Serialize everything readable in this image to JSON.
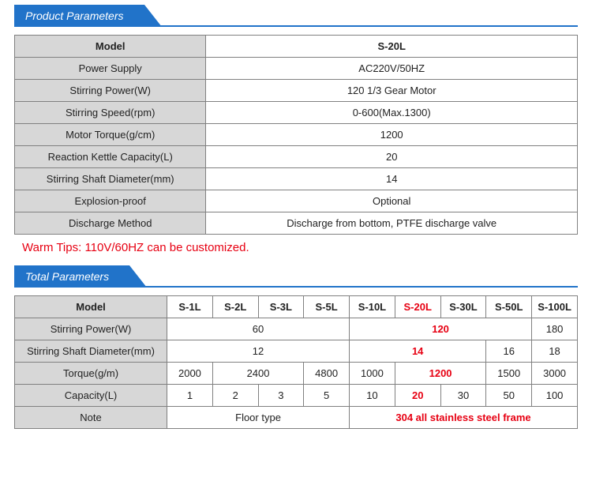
{
  "section1": {
    "title": "Product  Parameters",
    "rows": [
      {
        "label": "Model",
        "value": "S-20L",
        "header": true
      },
      {
        "label": "Power Supply",
        "value": "AC220V/50HZ"
      },
      {
        "label": "Stirring Power(W)",
        "value": "120 1/3 Gear Motor"
      },
      {
        "label": "Stirring Speed(rpm)",
        "value": "0-600(Max.1300)"
      },
      {
        "label": "Motor Torque(g/cm)",
        "value": "1200"
      },
      {
        "label": "Reaction Kettle Capacity(L)",
        "value": "20"
      },
      {
        "label": "Stirring Shaft Diameter(mm)",
        "value": "14"
      },
      {
        "label": "Explosion-proof",
        "value": "Optional"
      },
      {
        "label": "Discharge Method",
        "value": "Discharge from bottom, PTFE discharge valve"
      }
    ],
    "tips": "Warm Tips: 110V/60HZ can be customized."
  },
  "section2": {
    "title": "Total Parameters",
    "model_label": "Model",
    "models": [
      "S-1L",
      "S-2L",
      "S-3L",
      "S-5L",
      "S-10L",
      "S-20L",
      "S-30L",
      "S-50L",
      "S-100L"
    ],
    "highlight_model_index": 5,
    "rows": [
      {
        "label": "Stirring Power(W)",
        "cells": [
          {
            "text": "60",
            "span": 4
          },
          {
            "text": "120",
            "span": 4,
            "highlight": true
          },
          {
            "text": "180",
            "span": 1
          }
        ]
      },
      {
        "label": "Stirring Shaft Diameter(mm)",
        "cells": [
          {
            "text": "12",
            "span": 4
          },
          {
            "text": "14",
            "span": 3,
            "highlight": true
          },
          {
            "text": "16",
            "span": 1
          },
          {
            "text": "18",
            "span": 1
          }
        ]
      },
      {
        "label": "Torque(g/m)",
        "cells": [
          {
            "text": "2000",
            "span": 1
          },
          {
            "text": "2400",
            "span": 2
          },
          {
            "text": "4800",
            "span": 1
          },
          {
            "text": "1000",
            "span": 1
          },
          {
            "text": "1200",
            "span": 2,
            "highlight": true
          },
          {
            "text": "1500",
            "span": 1
          },
          {
            "text": "3000",
            "span": 1
          }
        ]
      },
      {
        "label": "Capacity(L)",
        "cells": [
          {
            "text": "1",
            "span": 1
          },
          {
            "text": "2",
            "span": 1
          },
          {
            "text": "3",
            "span": 1
          },
          {
            "text": "5",
            "span": 1
          },
          {
            "text": "10",
            "span": 1
          },
          {
            "text": "20",
            "span": 1,
            "highlight": true
          },
          {
            "text": "30",
            "span": 1
          },
          {
            "text": "50",
            "span": 1
          },
          {
            "text": "100",
            "span": 1
          }
        ]
      },
      {
        "label": "Note",
        "cells": [
          {
            "text": "Floor type",
            "span": 4
          },
          {
            "text": "304 all stainless steel frame",
            "span": 5,
            "highlight": true
          }
        ]
      }
    ]
  },
  "style": {
    "accent": "#2173c9",
    "highlight_color": "#e70012",
    "label_bg": "#d7d7d7",
    "border_color": "#808080"
  }
}
